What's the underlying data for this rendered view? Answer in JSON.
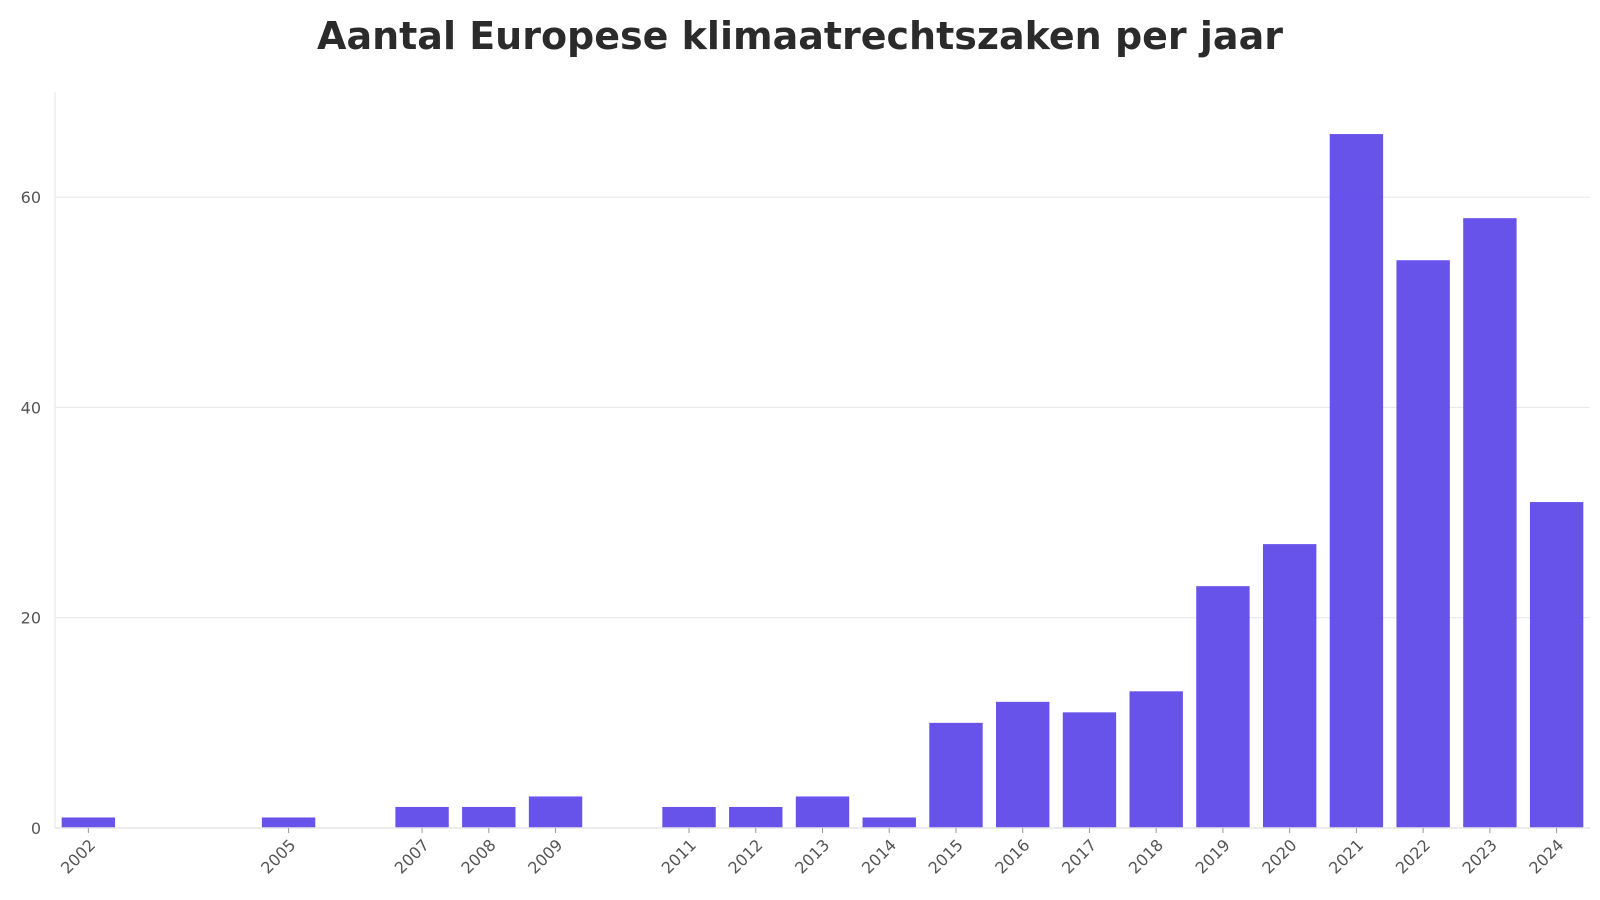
{
  "chart_data": {
    "type": "bar",
    "title": "Aantal Europese klimaatrechtszaken per jaar",
    "xlabel": "",
    "ylabel": "",
    "categories": [
      "2002",
      "2005",
      "2007",
      "2008",
      "2009",
      "2011",
      "2012",
      "2013",
      "2014",
      "2015",
      "2016",
      "2017",
      "2018",
      "2019",
      "2020",
      "2021",
      "2022",
      "2023",
      "2024"
    ],
    "x": [
      2002,
      2005,
      2007,
      2008,
      2009,
      2011,
      2012,
      2013,
      2014,
      2015,
      2016,
      2017,
      2018,
      2019,
      2020,
      2021,
      2022,
      2023,
      2024
    ],
    "values": [
      1,
      1,
      2,
      2,
      3,
      2,
      2,
      3,
      1,
      10,
      12,
      11,
      13,
      23,
      27,
      66,
      54,
      58,
      31
    ],
    "xlim": [
      2002,
      2024
    ],
    "ylim": [
      0,
      70
    ],
    "yticks": [
      0,
      20,
      40,
      60
    ],
    "grid": true,
    "legend": "none",
    "bar_color": "#5b45e8",
    "grid_color": "#e6e6e6"
  }
}
